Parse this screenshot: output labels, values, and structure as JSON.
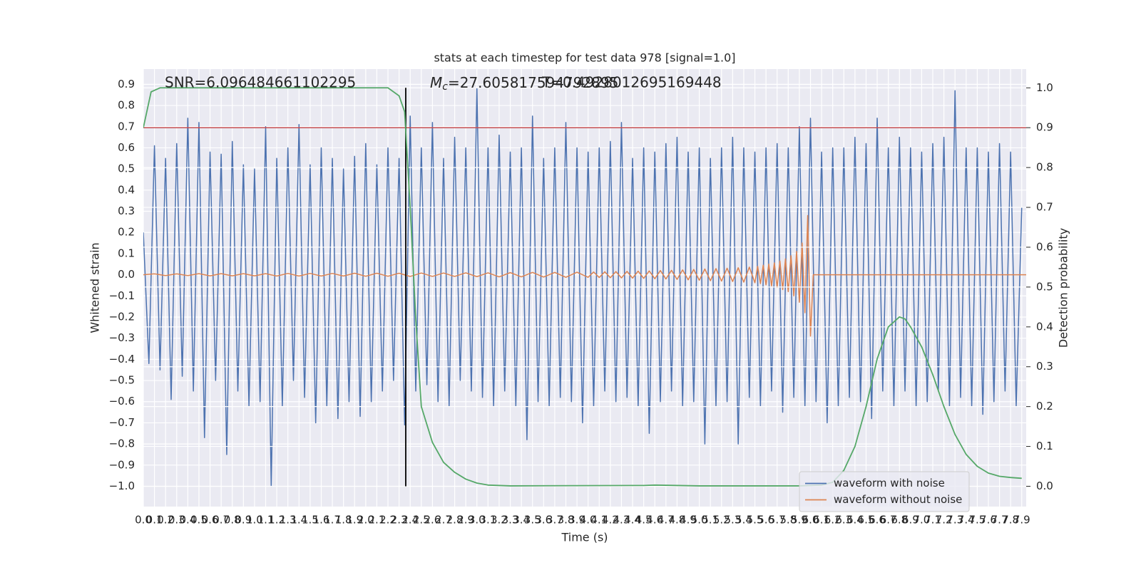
{
  "chart_data": {
    "type": "line",
    "title": "stats at each timestep for test data 978 [signal=1.0]",
    "xlabel": "Time (s)",
    "ylabel": "Whitened strain",
    "y2label": "Detection probability",
    "annotations": [
      {
        "text": "SNR=6.096484661102295"
      },
      {
        "symbol": "M",
        "subscript": "c",
        "text": "=27.605817594792895"
      },
      {
        "text": "T=0.4928012695169448"
      }
    ],
    "xlim": [
      0,
      7.94
    ],
    "ylim": [
      -1.096,
      0.972
    ],
    "y2lim": [
      -0.051,
      1.047
    ],
    "grid": true,
    "background": "#eaeaf2",
    "legend": "lower right",
    "xticks": [
      {
        "value": 0,
        "label": "0.0"
      },
      0.1,
      0.2,
      0.3,
      0.4,
      0.5,
      0.6,
      0.7,
      0.8,
      0.9,
      {
        "value": 1,
        "label": "1.0"
      },
      1.1,
      1.2,
      1.3,
      1.4,
      1.5,
      1.6,
      1.7,
      1.8,
      1.9,
      {
        "value": 2,
        "label": "2.0"
      },
      2.1,
      2.2,
      2.3,
      2.4,
      2.5,
      2.6,
      2.7,
      2.8,
      2.9,
      {
        "value": 3,
        "label": "3.0"
      },
      3.1,
      3.2,
      3.3,
      3.4,
      3.5,
      3.6,
      3.7,
      3.8,
      3.9,
      {
        "value": 4,
        "label": "4.0"
      },
      4.1,
      4.2,
      4.3,
      4.4,
      4.5,
      4.6,
      4.7,
      4.8,
      4.9,
      {
        "value": 5,
        "label": "5.0"
      },
      5.1,
      5.2,
      5.3,
      5.4,
      5.5,
      5.6,
      5.7,
      5.8,
      5.9,
      {
        "value": 6,
        "label": "6.0"
      },
      6.1,
      6.2,
      6.3,
      6.4,
      6.5,
      6.6,
      6.7,
      6.8,
      6.9,
      {
        "value": 7,
        "label": "7.0"
      },
      7.1,
      7.2,
      7.3,
      7.4,
      7.5,
      7.6,
      7.7,
      7.8,
      7.9
    ],
    "yticks": [
      {
        "value": -1,
        "label": "−1.0"
      },
      {
        "value": -0.9,
        "label": "−0.9"
      },
      {
        "value": -0.8,
        "label": "−0.8"
      },
      {
        "value": -0.7,
        "label": "−0.7"
      },
      {
        "value": -0.6,
        "label": "−0.6"
      },
      {
        "value": -0.5,
        "label": "−0.5"
      },
      {
        "value": -0.4,
        "label": "−0.4"
      },
      {
        "value": -0.3,
        "label": "−0.3"
      },
      {
        "value": -0.2,
        "label": "−0.2"
      },
      {
        "value": -0.1,
        "label": "−0.1"
      },
      {
        "value": 0,
        "label": "0.0"
      },
      0.1,
      0.2,
      0.3,
      0.4,
      0.5,
      0.6,
      0.7,
      0.8,
      0.9
    ],
    "y2ticks": [
      {
        "value": 0,
        "label": "0.0"
      },
      0.1,
      0.2,
      0.3,
      0.4,
      0.5,
      0.6,
      0.7,
      0.8,
      0.9,
      {
        "value": 1,
        "label": "1.0"
      }
    ],
    "series": [
      {
        "name": "waveform with noise",
        "color": "#4c72b0",
        "x": [
          0,
          0.05,
          0.1,
          0.15,
          0.2,
          0.25,
          0.3,
          0.35,
          0.4,
          0.45,
          0.5,
          0.55,
          0.6,
          0.65,
          0.7,
          0.75,
          0.8,
          0.85,
          0.9,
          0.95,
          1,
          1.05,
          1.1,
          1.15,
          1.2,
          1.25,
          1.3,
          1.35,
          1.4,
          1.45,
          1.5,
          1.55,
          1.6,
          1.65,
          1.7,
          1.75,
          1.8,
          1.85,
          1.9,
          1.95,
          2,
          2.05,
          2.1,
          2.15,
          2.2,
          2.25,
          2.3,
          2.35,
          2.4,
          2.45,
          2.5,
          2.55,
          2.6,
          2.65,
          2.7,
          2.75,
          2.8,
          2.85,
          2.9,
          2.95,
          3,
          3.05,
          3.1,
          3.15,
          3.2,
          3.25,
          3.3,
          3.35,
          3.4,
          3.45,
          3.5,
          3.55,
          3.6,
          3.65,
          3.7,
          3.75,
          3.8,
          3.85,
          3.9,
          3.95,
          4,
          4.05,
          4.1,
          4.15,
          4.2,
          4.25,
          4.3,
          4.35,
          4.4,
          4.45,
          4.5,
          4.55,
          4.6,
          4.65,
          4.7,
          4.75,
          4.8,
          4.85,
          4.9,
          4.95,
          5,
          5.05,
          5.1,
          5.15,
          5.2,
          5.25,
          5.3,
          5.35,
          5.4,
          5.45,
          5.5,
          5.55,
          5.6,
          5.65,
          5.7,
          5.75,
          5.8,
          5.85,
          5.9,
          5.95,
          6,
          6.05,
          6.1,
          6.15,
          6.2,
          6.25,
          6.3,
          6.35,
          6.4,
          6.45,
          6.5,
          6.55,
          6.6,
          6.65,
          6.7,
          6.75,
          6.8,
          6.85,
          6.9,
          6.95,
          7,
          7.05,
          7.1,
          7.15,
          7.2,
          7.25,
          7.3,
          7.35,
          7.4,
          7.45,
          7.5,
          7.55,
          7.6,
          7.65,
          7.7,
          7.75,
          7.8,
          7.85,
          7.9
        ],
        "values": [
          0.2,
          -0.42,
          0.61,
          -0.45,
          0.55,
          -0.59,
          0.62,
          -0.48,
          0.74,
          -0.55,
          0.72,
          -0.77,
          0.58,
          -0.5,
          0.57,
          -0.85,
          0.63,
          -0.55,
          0.52,
          -0.62,
          0.5,
          -0.6,
          0.7,
          -1.0,
          0.55,
          -0.62,
          0.6,
          -0.5,
          0.71,
          -0.58,
          0.52,
          -0.7,
          0.6,
          -0.62,
          0.55,
          -0.68,
          0.5,
          -0.6,
          0.56,
          -0.67,
          0.62,
          -0.6,
          0.52,
          -0.55,
          0.6,
          -0.5,
          0.55,
          -0.71,
          0.75,
          -0.55,
          0.6,
          -0.52,
          0.72,
          -0.6,
          0.55,
          -0.62,
          0.65,
          -0.5,
          0.6,
          -0.55,
          0.88,
          -0.58,
          0.6,
          -0.62,
          0.66,
          -0.55,
          0.58,
          -0.62,
          0.6,
          -0.78,
          0.75,
          -0.6,
          0.55,
          -0.62,
          0.6,
          -0.58,
          0.72,
          -0.6,
          0.6,
          -0.7,
          0.58,
          -0.62,
          0.6,
          -0.55,
          0.63,
          -0.6,
          0.72,
          -0.58,
          0.55,
          -0.62,
          0.6,
          -0.75,
          0.58,
          -0.6,
          0.62,
          -0.55,
          0.65,
          -0.62,
          0.58,
          -0.6,
          0.6,
          -0.8,
          0.55,
          -0.62,
          0.6,
          -0.6,
          0.65,
          -0.8,
          0.6,
          -0.58,
          0.58,
          -0.62,
          0.6,
          -0.55,
          0.62,
          -0.65,
          0.6,
          -0.58,
          0.7,
          -0.62,
          0.74,
          -0.6,
          0.58,
          -0.7,
          0.6,
          -0.62,
          0.6,
          -0.58,
          0.65,
          -0.6,
          0.62,
          -0.68,
          0.74,
          -0.55,
          0.6,
          -0.62,
          0.65,
          -0.55,
          0.6,
          -0.62,
          0.58,
          -0.6,
          0.62,
          -0.55,
          0.65,
          -0.62,
          0.87,
          -0.58,
          0.6,
          -0.62,
          0.6,
          -0.66,
          0.58,
          -0.6,
          0.62,
          -0.55,
          0.58,
          -0.62,
          0.32
        ]
      },
      {
        "name": "waveform without noise",
        "color": "#dd8452",
        "x": [
          0,
          0.1,
          0.2,
          0.3,
          0.4,
          0.5,
          0.6,
          0.7,
          0.8,
          0.9,
          1,
          1.1,
          1.2,
          1.3,
          1.4,
          1.5,
          1.6,
          1.7,
          1.8,
          1.9,
          2,
          2.1,
          2.2,
          2.3,
          2.4,
          2.5,
          2.6,
          2.7,
          2.8,
          2.9,
          3,
          3.1,
          3.2,
          3.3,
          3.4,
          3.5,
          3.6,
          3.7,
          3.8,
          3.9,
          4,
          4.05,
          4.1,
          4.15,
          4.2,
          4.25,
          4.3,
          4.35,
          4.4,
          4.45,
          4.5,
          4.55,
          4.6,
          4.65,
          4.7,
          4.75,
          4.8,
          4.85,
          4.9,
          4.95,
          5,
          5.05,
          5.1,
          5.15,
          5.2,
          5.25,
          5.3,
          5.35,
          5.4,
          5.45,
          5.5,
          5.525,
          5.55,
          5.575,
          5.6,
          5.625,
          5.65,
          5.675,
          5.7,
          5.725,
          5.75,
          5.775,
          5.8,
          5.825,
          5.85,
          5.875,
          5.9,
          5.925,
          5.95,
          5.975,
          6,
          6.025,
          7.94
        ],
        "values": [
          0,
          0.004,
          -0.004,
          0.004,
          -0.004,
          0.005,
          -0.005,
          0.005,
          -0.005,
          0.005,
          -0.005,
          0.005,
          -0.006,
          0.006,
          -0.006,
          0.006,
          -0.006,
          0.006,
          -0.006,
          0.007,
          -0.007,
          0.007,
          -0.007,
          0.007,
          -0.008,
          0.008,
          -0.008,
          0.008,
          -0.008,
          0.009,
          -0.009,
          0.009,
          -0.01,
          0.01,
          -0.01,
          0.011,
          -0.011,
          0.011,
          -0.012,
          0.012,
          -0.012,
          0.013,
          -0.013,
          0.014,
          -0.014,
          0.015,
          -0.015,
          0.016,
          -0.016,
          0.017,
          -0.017,
          0.018,
          -0.019,
          0.02,
          -0.02,
          0.021,
          -0.022,
          0.023,
          -0.024,
          0.025,
          -0.026,
          0.027,
          -0.028,
          0.029,
          -0.03,
          0.031,
          -0.032,
          0.033,
          -0.035,
          0.036,
          -0.038,
          0.04,
          -0.042,
          0.045,
          -0.048,
          0.05,
          -0.053,
          0.056,
          -0.06,
          0.065,
          -0.07,
          0.075,
          -0.08,
          0.09,
          -0.1,
          0.11,
          -0.13,
          0.15,
          -0.18,
          0.28,
          -0.29,
          0,
          0
        ]
      },
      {
        "color": "#55a868",
        "axis": "y2",
        "x": [
          0,
          0.07,
          0.15,
          2.2,
          2.3,
          2.35,
          2.4,
          2.45,
          2.5,
          2.6,
          2.7,
          2.8,
          2.9,
          3,
          3.1,
          3.3,
          4.5,
          4.6,
          5,
          5.9,
          6.1,
          6.2,
          6.3,
          6.4,
          6.5,
          6.6,
          6.7,
          6.8,
          6.85,
          6.9,
          7,
          7.1,
          7.2,
          7.3,
          7.4,
          7.5,
          7.6,
          7.7,
          7.8,
          7.9
        ],
        "values": [
          0.9,
          0.99,
          1.0,
          1.0,
          0.98,
          0.94,
          0.7,
          0.42,
          0.2,
          0.11,
          0.06,
          0.035,
          0.018,
          0.008,
          0.003,
          0.001,
          0.002,
          0.003,
          0.001,
          0.001,
          0.003,
          0.01,
          0.04,
          0.1,
          0.2,
          0.32,
          0.4,
          0.425,
          0.42,
          0.4,
          0.35,
          0.28,
          0.2,
          0.13,
          0.08,
          0.05,
          0.033,
          0.025,
          0.022,
          0.02
        ]
      }
    ],
    "hlines": [
      {
        "value": 0.9,
        "axis": "y2",
        "color": "#c44e52"
      }
    ],
    "vlines": [
      {
        "value": 2.36,
        "ymin": 0,
        "ymax": 1,
        "axis": "y2",
        "color": "#000000"
      }
    ]
  }
}
